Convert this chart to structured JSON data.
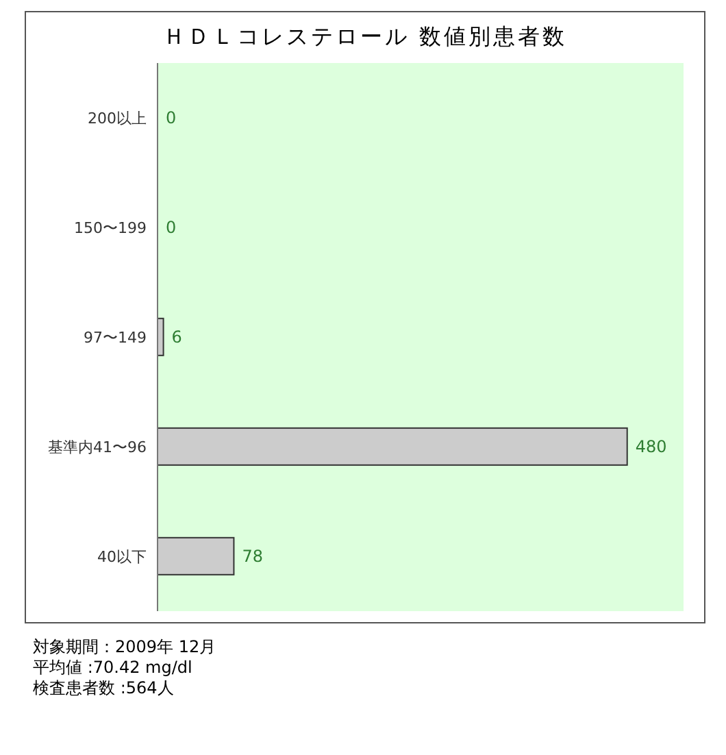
{
  "chart_data": {
    "type": "bar",
    "orientation": "horizontal",
    "title": "ＨＤＬコレステロール 数値別患者数",
    "categories": [
      "200以上",
      "150〜199",
      "97〜149",
      "基準内41〜96",
      "40以下"
    ],
    "values": [
      0,
      0,
      6,
      480,
      78
    ],
    "color": "#cccccc",
    "data_labels": true,
    "legend": false,
    "annotations": [
      "対象期間：2009年 12月",
      "平均値 :70.42 mg/dl",
      "検査患者数 :564人"
    ]
  }
}
